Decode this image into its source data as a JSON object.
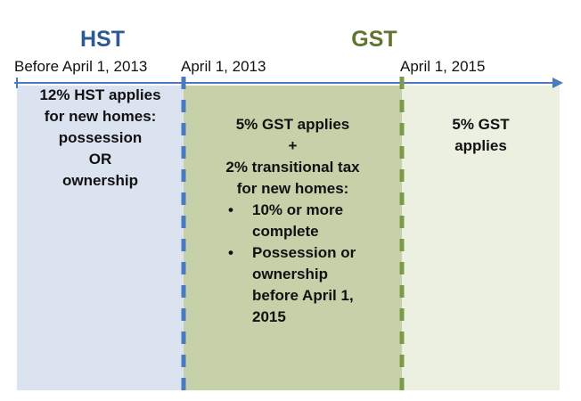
{
  "headings": {
    "hst": "HST",
    "gst": "GST"
  },
  "dates": {
    "before": "Before April 1, 2013",
    "start": "April 1, 2013",
    "end": "April 1, 2015"
  },
  "panels": {
    "hst": {
      "lines": [
        "12% HST applies",
        "for new homes:",
        "possession",
        "OR",
        "ownership"
      ]
    },
    "transition": {
      "lines": [
        "5% GST applies",
        "+",
        "2% transitional tax",
        "for new homes:"
      ],
      "bullets": [
        {
          "lines": [
            "10% or more",
            "complete"
          ]
        },
        {
          "lines": [
            "Possession or",
            "ownership",
            "before April 1,",
            "2015"
          ]
        }
      ]
    },
    "gst": {
      "lines": [
        "5% GST",
        "applies"
      ]
    }
  },
  "colors": {
    "hst_heading": "#2e5a94",
    "gst_heading": "#5f7630",
    "hst_panel": "#dbe3f0",
    "transition_panel": "#c6d1aa",
    "gst_panel": "#ebf0e1",
    "timeline": "#4a7bc0",
    "marker_blue": "#4a7bc0",
    "marker_green": "#7d9a4a"
  },
  "bullet_symbol": "•"
}
